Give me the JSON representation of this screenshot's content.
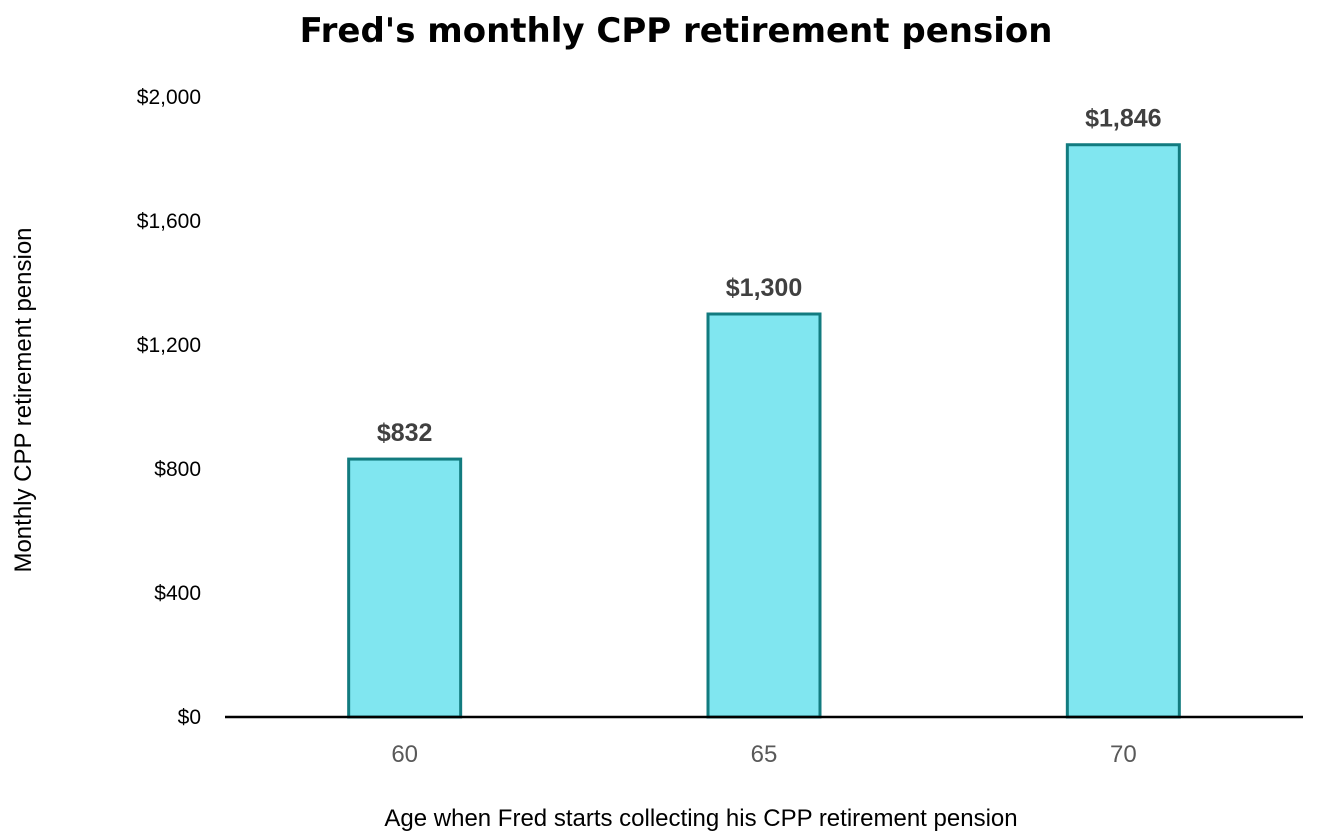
{
  "chart_data": {
    "type": "bar",
    "title": "Fred's monthly CPP retirement pension",
    "xlabel": "Age when Fred starts collecting his CPP retirement pension",
    "ylabel": "Monthly CPP retirement  pension",
    "categories": [
      "60",
      "65",
      "70"
    ],
    "values": [
      832,
      1300,
      1846
    ],
    "data_labels": [
      "$832",
      "$1,300",
      "$1,846"
    ],
    "ylim": [
      0,
      2000
    ],
    "yticks": [
      0,
      400,
      800,
      1200,
      1600,
      2000
    ],
    "ytick_labels": [
      "$0",
      "$400",
      "$800",
      "$1,200",
      "$1,600",
      "$2,000"
    ],
    "grid": false,
    "legend": "none"
  },
  "colors": {
    "bar_fill": "#80E6F0",
    "bar_stroke": "#127B7F",
    "axis": "#000000"
  }
}
